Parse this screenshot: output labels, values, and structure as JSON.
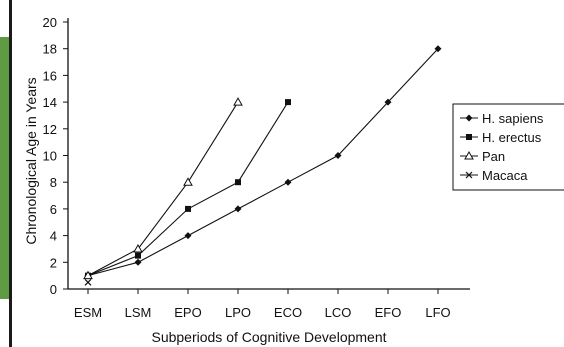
{
  "chart_data": {
    "type": "line",
    "categories": [
      "ESM",
      "LSM",
      "EPO",
      "LPO",
      "ECO",
      "LCO",
      "EFO",
      "LFO"
    ],
    "xlabel": "Subperiods of Cognitive Development",
    "ylabel": "Chronological Age in Years",
    "ylim": [
      0,
      20
    ],
    "yticks": [
      0,
      2,
      4,
      6,
      8,
      10,
      12,
      14,
      16,
      18,
      20
    ],
    "grid": false,
    "legend_position": "right",
    "series": [
      {
        "name": "H. sapiens",
        "marker": "diamond",
        "values": [
          1,
          2,
          4,
          6,
          8,
          10,
          14,
          18
        ]
      },
      {
        "name": "H. erectus",
        "marker": "square",
        "values": [
          1,
          2.5,
          6,
          8,
          14,
          null,
          null,
          null
        ]
      },
      {
        "name": "Pan",
        "marker": "triangle",
        "values": [
          1,
          3,
          8,
          14,
          null,
          null,
          null,
          null
        ]
      },
      {
        "name": "Macaca",
        "marker": "x",
        "values": [
          0.5,
          null,
          null,
          null,
          null,
          null,
          null,
          null
        ]
      }
    ]
  },
  "colors": {
    "ink": "#111111",
    "panel": "#5f9b42"
  }
}
